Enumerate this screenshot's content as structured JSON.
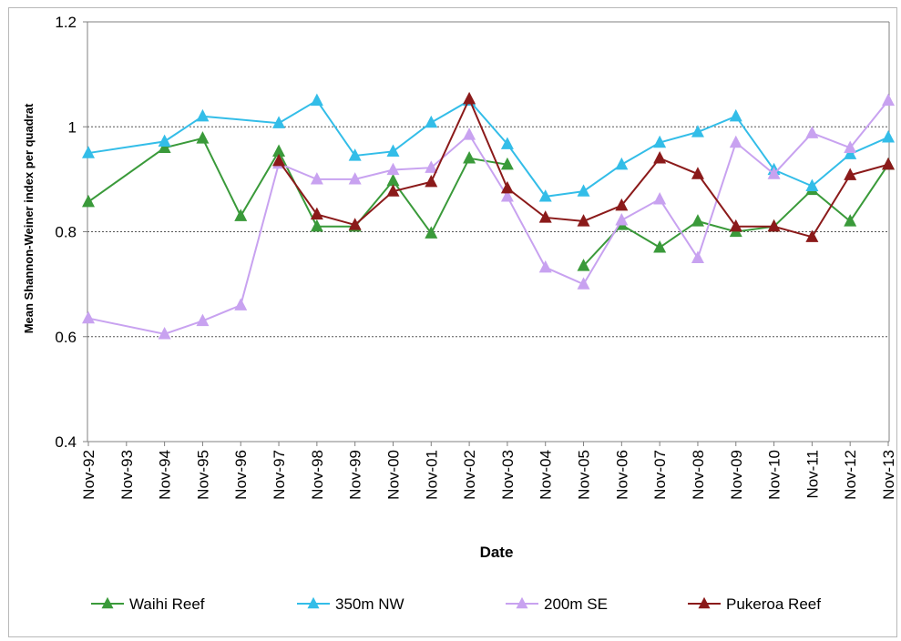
{
  "chart_data": {
    "type": "line",
    "title": "",
    "xlabel": "Date",
    "ylabel": "Mean Shannon-Weiner index per quadrat",
    "ylim": [
      0.4,
      1.2
    ],
    "yticks": [
      0.4,
      0.6,
      0.8,
      1,
      1.2
    ],
    "ytick_labels": [
      "0.4",
      "0.6",
      "0.8",
      "1",
      "1.2"
    ],
    "grid": "horizontal dashed at 0.6, 0.8, 1",
    "legend_position": "bottom",
    "categories": [
      "Nov-92",
      "Nov-93",
      "Nov-94",
      "Nov-95",
      "Nov-96",
      "Nov-97",
      "Nov-98",
      "Nov-99",
      "Nov-00",
      "Nov-01",
      "Nov-02",
      "Nov-03",
      "Nov-04",
      "Nov-05",
      "Nov-06",
      "Nov-07",
      "Nov-08",
      "Nov-09",
      "Nov-10",
      "Nov-11",
      "Nov-12",
      "Nov-13"
    ],
    "series": [
      {
        "name": "Waihi Reef",
        "color": "#3a9a3a",
        "points": [
          {
            "x": "Nov-92",
            "y": 0.857
          },
          {
            "x": "Nov-94",
            "y": 0.96
          },
          {
            "x": "Nov-95",
            "y": 0.978
          },
          {
            "x": "Nov-96",
            "y": 0.83
          },
          {
            "x": "Nov-97",
            "y": 0.953
          },
          {
            "x": "Nov-98",
            "y": 0.81
          },
          {
            "x": "Nov-99",
            "y": 0.81
          },
          {
            "x": "Nov-00",
            "y": 0.897
          },
          {
            "x": "Nov-01",
            "y": 0.797
          },
          {
            "x": "Nov-02",
            "y": 0.94
          },
          {
            "x": "Nov-03",
            "y": 0.928
          },
          {
            "x": "Nov-05",
            "y": 0.735
          },
          {
            "x": "Nov-06",
            "y": 0.813
          },
          {
            "x": "Nov-07",
            "y": 0.77
          },
          {
            "x": "Nov-08",
            "y": 0.82
          },
          {
            "x": "Nov-09",
            "y": 0.8
          },
          {
            "x": "Nov-10",
            "y": 0.81
          },
          {
            "x": "Nov-11",
            "y": 0.88
          },
          {
            "x": "Nov-12",
            "y": 0.82
          },
          {
            "x": "Nov-13",
            "y": 0.928
          }
        ]
      },
      {
        "name": "350m NW",
        "color": "#33bde8",
        "points": [
          {
            "x": "Nov-92",
            "y": 0.95
          },
          {
            "x": "Nov-94",
            "y": 0.972
          },
          {
            "x": "Nov-95",
            "y": 1.02
          },
          {
            "x": "Nov-97",
            "y": 1.007
          },
          {
            "x": "Nov-98",
            "y": 1.05
          },
          {
            "x": "Nov-99",
            "y": 0.945
          },
          {
            "x": "Nov-00",
            "y": 0.953
          },
          {
            "x": "Nov-01",
            "y": 1.008
          },
          {
            "x": "Nov-02",
            "y": 1.05
          },
          {
            "x": "Nov-03",
            "y": 0.967
          },
          {
            "x": "Nov-04",
            "y": 0.867
          },
          {
            "x": "Nov-05",
            "y": 0.877
          },
          {
            "x": "Nov-06",
            "y": 0.928
          },
          {
            "x": "Nov-07",
            "y": 0.97
          },
          {
            "x": "Nov-08",
            "y": 0.99
          },
          {
            "x": "Nov-09",
            "y": 1.02
          },
          {
            "x": "Nov-10",
            "y": 0.918
          },
          {
            "x": "Nov-11",
            "y": 0.887
          },
          {
            "x": "Nov-12",
            "y": 0.948
          },
          {
            "x": "Nov-13",
            "y": 0.98
          }
        ]
      },
      {
        "name": "200m SE",
        "color": "#c8a2f0",
        "points": [
          {
            "x": "Nov-92",
            "y": 0.635
          },
          {
            "x": "Nov-94",
            "y": 0.605
          },
          {
            "x": "Nov-95",
            "y": 0.63
          },
          {
            "x": "Nov-96",
            "y": 0.66
          },
          {
            "x": "Nov-97",
            "y": 0.93
          },
          {
            "x": "Nov-98",
            "y": 0.9
          },
          {
            "x": "Nov-99",
            "y": 0.9
          },
          {
            "x": "Nov-00",
            "y": 0.918
          },
          {
            "x": "Nov-01",
            "y": 0.922
          },
          {
            "x": "Nov-02",
            "y": 0.985
          },
          {
            "x": "Nov-03",
            "y": 0.867
          },
          {
            "x": "Nov-04",
            "y": 0.732
          },
          {
            "x": "Nov-05",
            "y": 0.7
          },
          {
            "x": "Nov-06",
            "y": 0.822
          },
          {
            "x": "Nov-07",
            "y": 0.862
          },
          {
            "x": "Nov-08",
            "y": 0.75
          },
          {
            "x": "Nov-09",
            "y": 0.97
          },
          {
            "x": "Nov-10",
            "y": 0.91
          },
          {
            "x": "Nov-11",
            "y": 0.988
          },
          {
            "x": "Nov-12",
            "y": 0.96
          },
          {
            "x": "Nov-13",
            "y": 1.05
          }
        ]
      },
      {
        "name": "Pukeroa Reef",
        "color": "#8b1a1a",
        "points": [
          {
            "x": "Nov-97",
            "y": 0.935
          },
          {
            "x": "Nov-98",
            "y": 0.833
          },
          {
            "x": "Nov-99",
            "y": 0.813
          },
          {
            "x": "Nov-00",
            "y": 0.877
          },
          {
            "x": "Nov-01",
            "y": 0.895
          },
          {
            "x": "Nov-02",
            "y": 1.053
          },
          {
            "x": "Nov-03",
            "y": 0.883
          },
          {
            "x": "Nov-04",
            "y": 0.827
          },
          {
            "x": "Nov-05",
            "y": 0.82
          },
          {
            "x": "Nov-06",
            "y": 0.85
          },
          {
            "x": "Nov-07",
            "y": 0.94
          },
          {
            "x": "Nov-08",
            "y": 0.91
          },
          {
            "x": "Nov-09",
            "y": 0.81
          },
          {
            "x": "Nov-10",
            "y": 0.81
          },
          {
            "x": "Nov-11",
            "y": 0.79
          },
          {
            "x": "Nov-12",
            "y": 0.908
          },
          {
            "x": "Nov-13",
            "y": 0.928
          }
        ]
      }
    ]
  }
}
